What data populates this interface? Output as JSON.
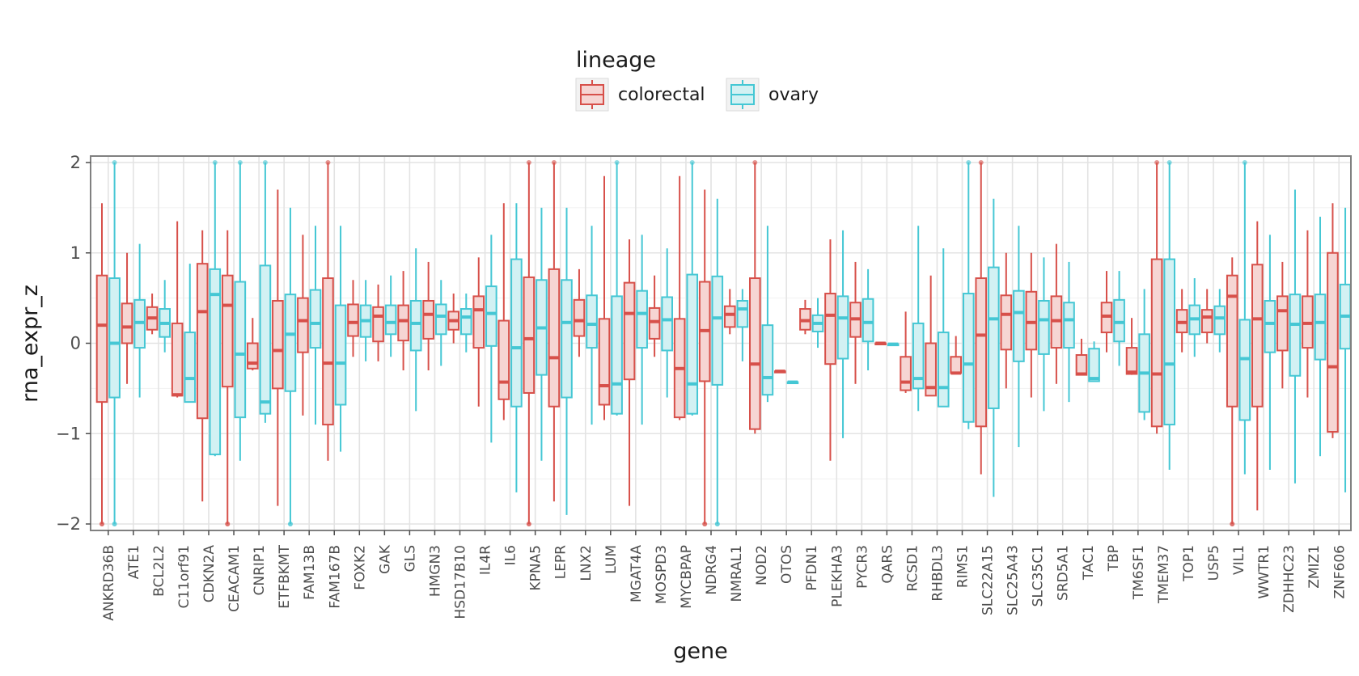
{
  "chart_data": {
    "type": "boxplot",
    "xlabel": "gene",
    "ylabel": "rna_expr_z",
    "ylim": [
      -2,
      2
    ],
    "yticks": [
      {
        "value": 2,
        "label": "2"
      },
      {
        "value": 1,
        "label": "1"
      },
      {
        "value": 0,
        "label": "0"
      },
      {
        "value": -1,
        "label": "−1"
      },
      {
        "value": -2,
        "label": "−2"
      }
    ],
    "grid": true,
    "legend": {
      "title": "lineage",
      "position": "top",
      "entries": [
        {
          "name": "colorectal",
          "color": "#d7504a",
          "fill": "#f6d5d3"
        },
        {
          "name": "ovary",
          "color": "#45c7d4",
          "fill": "#d2f1f3"
        }
      ]
    },
    "categories": [
      "ANKRD36B",
      "ATE1",
      "BCL2L2",
      "C11orf91",
      "CDKN2A",
      "CEACAM1",
      "CNRIP1",
      "ETFBKMT",
      "FAM13B",
      "FAM167B",
      "FOXK2",
      "GAK",
      "GLS",
      "HMGN3",
      "HSD17B10",
      "IL4R",
      "IL6",
      "KPNA5",
      "LEPR",
      "LNX2",
      "LUM",
      "MGAT4A",
      "MOSPD3",
      "MYCBPAP",
      "NDRG4",
      "NMRAL1",
      "NOD2",
      "OTOS",
      "PFDN1",
      "PLEKHA3",
      "PYCR3",
      "QARS",
      "RCSD1",
      "RHBDL3",
      "RIMS1",
      "SLC22A15",
      "SLC25A43",
      "SLC35C1",
      "SRD5A1",
      "TAC1",
      "TBP",
      "TM6SF1",
      "TMEM37",
      "TOP1",
      "USP5",
      "VIL1",
      "WWTR1",
      "ZDHHC23",
      "ZMIZ1",
      "ZNF606"
    ],
    "series": [
      {
        "name": "colorectal",
        "boxes": [
          [
            -2.0,
            -0.65,
            0.2,
            0.75,
            1.55
          ],
          [
            -0.45,
            0.0,
            0.18,
            0.44,
            1.0
          ],
          [
            0.1,
            0.15,
            0.28,
            0.4,
            0.55
          ],
          [
            -0.6,
            -0.58,
            -0.57,
            0.22,
            1.35
          ],
          [
            -1.75,
            -0.83,
            0.35,
            0.88,
            1.25
          ],
          [
            -2.0,
            -0.48,
            0.42,
            0.75,
            1.25
          ],
          [
            -0.3,
            -0.28,
            -0.22,
            0.0,
            0.28
          ],
          [
            -1.8,
            -0.5,
            -0.08,
            0.47,
            1.7
          ],
          [
            -0.8,
            -0.1,
            0.25,
            0.5,
            1.2
          ],
          [
            -1.3,
            -0.9,
            -0.22,
            0.72,
            2.0
          ],
          [
            -0.15,
            0.08,
            0.23,
            0.43,
            0.7
          ],
          [
            -0.2,
            0.02,
            0.3,
            0.4,
            0.65
          ],
          [
            -0.3,
            0.03,
            0.25,
            0.42,
            0.8
          ],
          [
            -0.3,
            0.05,
            0.32,
            0.47,
            0.9
          ],
          [
            0.0,
            0.15,
            0.25,
            0.35,
            0.55
          ],
          [
            -0.7,
            -0.05,
            0.37,
            0.52,
            0.95
          ],
          [
            -0.85,
            -0.62,
            -0.43,
            0.25,
            1.55
          ],
          [
            -2.0,
            -0.55,
            0.05,
            0.73,
            2.0
          ],
          [
            -1.75,
            -0.7,
            -0.16,
            0.82,
            2.0
          ],
          [
            -0.15,
            0.08,
            0.25,
            0.48,
            0.82
          ],
          [
            -0.85,
            -0.68,
            -0.47,
            0.27,
            1.85
          ],
          [
            -1.8,
            -0.4,
            0.33,
            0.67,
            1.15
          ],
          [
            -0.15,
            0.05,
            0.24,
            0.39,
            0.75
          ],
          [
            -0.85,
            -0.82,
            -0.28,
            0.27,
            1.85
          ],
          [
            -2.0,
            -0.42,
            0.14,
            0.68,
            1.7
          ],
          [
            0.1,
            0.18,
            0.32,
            0.41,
            0.6
          ],
          [
            -1.0,
            -0.95,
            -0.23,
            0.72,
            2.0
          ],
          [
            -0.31,
            -0.31,
            -0.31,
            -0.31,
            -0.31
          ],
          [
            0.1,
            0.15,
            0.25,
            0.38,
            0.48
          ],
          [
            -1.3,
            -0.23,
            0.31,
            0.55,
            1.15
          ],
          [
            -0.45,
            0.07,
            0.27,
            0.45,
            0.9
          ],
          [
            0.0,
            0.0,
            0.0,
            0.0,
            0.0
          ],
          [
            -0.55,
            -0.52,
            -0.43,
            -0.15,
            0.35
          ],
          [
            -0.58,
            -0.58,
            -0.49,
            0.0,
            0.75
          ],
          [
            -0.33,
            -0.33,
            -0.33,
            -0.15,
            0.08
          ],
          [
            -1.45,
            -0.92,
            0.09,
            0.72,
            2.0
          ],
          [
            -0.5,
            -0.07,
            0.32,
            0.53,
            1.0
          ],
          [
            -0.6,
            -0.07,
            0.23,
            0.57,
            1.0
          ],
          [
            -0.45,
            -0.05,
            0.25,
            0.52,
            1.1
          ],
          [
            -0.35,
            -0.35,
            -0.34,
            -0.13,
            0.05
          ],
          [
            -0.1,
            0.12,
            0.3,
            0.45,
            0.8
          ],
          [
            -0.35,
            -0.34,
            -0.32,
            -0.05,
            0.28
          ],
          [
            -1.0,
            -0.92,
            -0.34,
            0.93,
            2.0
          ],
          [
            -0.1,
            0.12,
            0.23,
            0.37,
            0.6
          ],
          [
            0.0,
            0.12,
            0.29,
            0.37,
            0.6
          ],
          [
            -2.0,
            -0.7,
            0.52,
            0.75,
            0.95
          ],
          [
            -1.85,
            -0.7,
            0.27,
            0.87,
            1.35
          ],
          [
            -0.5,
            -0.08,
            0.36,
            0.52,
            0.9
          ],
          [
            -0.6,
            -0.05,
            0.22,
            0.52,
            1.25
          ],
          [
            -1.05,
            -0.98,
            -0.26,
            1.0,
            1.55
          ]
        ]
      },
      {
        "name": "ovary",
        "boxes": [
          [
            -2.0,
            -0.6,
            0.0,
            0.72,
            2.0
          ],
          [
            -0.6,
            -0.05,
            0.23,
            0.48,
            1.1
          ],
          [
            -0.1,
            0.07,
            0.22,
            0.38,
            0.7
          ],
          [
            -0.65,
            -0.65,
            -0.39,
            0.12,
            0.88
          ],
          [
            -1.25,
            -1.23,
            0.54,
            0.82,
            2.0
          ],
          [
            -1.3,
            -0.82,
            -0.12,
            0.68,
            2.0
          ],
          [
            -0.88,
            -0.78,
            -0.65,
            0.86,
            2.0
          ],
          [
            -2.0,
            -0.53,
            0.1,
            0.54,
            1.5
          ],
          [
            -0.9,
            -0.05,
            0.22,
            0.59,
            1.3
          ],
          [
            -1.2,
            -0.68,
            -0.22,
            0.42,
            1.3
          ],
          [
            -0.2,
            0.07,
            0.25,
            0.42,
            0.7
          ],
          [
            -0.15,
            0.1,
            0.23,
            0.42,
            0.75
          ],
          [
            -0.75,
            -0.08,
            0.22,
            0.47,
            1.05
          ],
          [
            -0.25,
            0.1,
            0.3,
            0.43,
            0.7
          ],
          [
            -0.1,
            0.1,
            0.29,
            0.38,
            0.55
          ],
          [
            -1.1,
            -0.03,
            0.33,
            0.63,
            1.2
          ],
          [
            -1.65,
            -0.7,
            -0.05,
            0.93,
            1.55
          ],
          [
            -1.3,
            -0.35,
            0.17,
            0.7,
            1.5
          ],
          [
            -1.9,
            -0.6,
            0.23,
            0.7,
            1.5
          ],
          [
            -0.9,
            -0.05,
            0.21,
            0.53,
            1.3
          ],
          [
            -0.8,
            -0.78,
            -0.45,
            0.52,
            2.0
          ],
          [
            -0.9,
            -0.05,
            0.33,
            0.58,
            1.2
          ],
          [
            -0.6,
            -0.08,
            0.26,
            0.51,
            1.05
          ],
          [
            -0.8,
            -0.78,
            -0.45,
            0.76,
            2.0
          ],
          [
            -2.0,
            -0.46,
            0.28,
            0.74,
            1.6
          ],
          [
            -0.2,
            0.18,
            0.38,
            0.47,
            0.6
          ],
          [
            -0.65,
            -0.57,
            -0.38,
            0.2,
            1.3
          ],
          [
            -0.43,
            -0.43,
            -0.43,
            -0.43,
            -0.43
          ],
          [
            -0.05,
            0.13,
            0.22,
            0.31,
            0.5
          ],
          [
            -1.05,
            -0.17,
            0.28,
            0.52,
            1.25
          ],
          [
            -0.3,
            0.02,
            0.23,
            0.49,
            0.82
          ],
          [
            -0.01,
            -0.01,
            -0.01,
            -0.01,
            -0.01
          ],
          [
            -0.75,
            -0.5,
            -0.39,
            0.22,
            1.3
          ],
          [
            -0.7,
            -0.7,
            -0.49,
            0.12,
            1.05
          ],
          [
            -0.95,
            -0.87,
            -0.23,
            0.55,
            2.0
          ],
          [
            -1.7,
            -0.72,
            0.27,
            0.84,
            1.6
          ],
          [
            -1.15,
            -0.2,
            0.34,
            0.58,
            1.3
          ],
          [
            -0.75,
            -0.12,
            0.26,
            0.47,
            0.95
          ],
          [
            -0.65,
            -0.05,
            0.26,
            0.45,
            0.9
          ],
          [
            -0.42,
            -0.42,
            -0.39,
            -0.06,
            0.02
          ],
          [
            -0.25,
            0.02,
            0.23,
            0.48,
            0.8
          ],
          [
            -0.85,
            -0.76,
            -0.33,
            0.1,
            0.6
          ],
          [
            -1.4,
            -0.9,
            -0.23,
            0.93,
            2.0
          ],
          [
            -0.15,
            0.1,
            0.27,
            0.42,
            0.72
          ],
          [
            -0.1,
            0.1,
            0.28,
            0.41,
            0.6
          ],
          [
            -1.45,
            -0.85,
            -0.17,
            0.26,
            2.0
          ],
          [
            -1.4,
            -0.1,
            0.22,
            0.47,
            1.2
          ],
          [
            -1.55,
            -0.36,
            0.21,
            0.54,
            1.7
          ],
          [
            -1.25,
            -0.18,
            0.23,
            0.54,
            1.4
          ],
          [
            -1.65,
            -0.06,
            0.3,
            0.65,
            1.5
          ]
        ]
      }
    ]
  }
}
